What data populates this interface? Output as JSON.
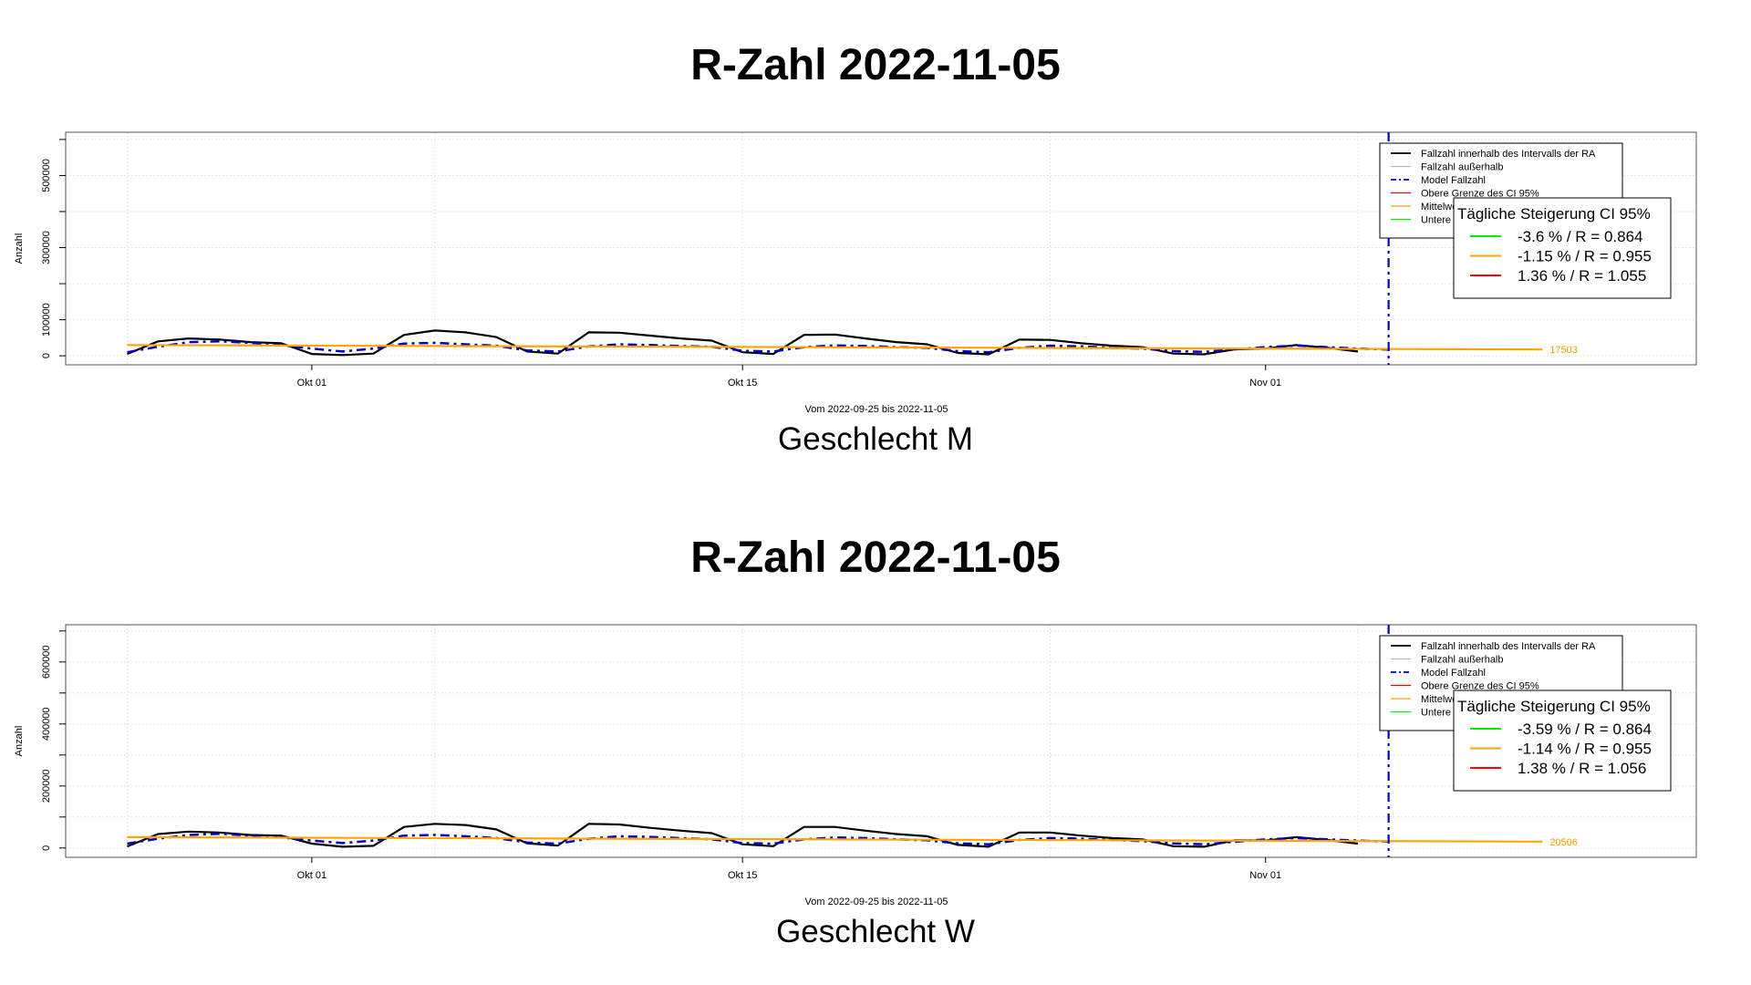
{
  "chart_data": [
    {
      "id": "m",
      "type": "line",
      "title": "R-Zahl 2022-11-05",
      "subtitle": "Geschlecht M",
      "xlabel": "Vom 2022-09-25 bis 2022-11-05",
      "ylabel": "Anzahl",
      "x_range": [
        "2022-09-23",
        "2022-11-15"
      ],
      "ylim": [
        -25000,
        620000
      ],
      "y_ticks": [
        0,
        100000,
        300000,
        500000
      ],
      "y_tick_labels": [
        "0",
        "100000",
        "300000",
        "500000"
      ],
      "x_ticks": [
        "2022-10-01",
        "2022-10-15",
        "2022-11-01"
      ],
      "x_tick_labels": [
        "Okt 01",
        "Okt 15",
        "Nov 01"
      ],
      "grid": true,
      "last_value_label": "17503",
      "legend": {
        "position": "top-right",
        "entries": [
          "Fallzahl innerhalb des Intervalls der RA",
          "Fallzahl außerhalb",
          "Model Fallzahl",
          "Obere Grenze des CI 95%",
          "Mittelwert",
          "Untere Grenze des CI 95%"
        ]
      },
      "ci_box": {
        "title": "Tägliche Steigerung CI  95%",
        "entries": [
          "-3.6 % / R = 0.864",
          "-1.15 % / R = 0.955",
          "1.36 % / R = 1.055"
        ]
      },
      "vline_date": "2022-11-05",
      "series": [
        {
          "name": "Fallzahl innerhalb des Intervalls der RA",
          "x": [
            "2022-09-25",
            "2022-09-26",
            "2022-09-27",
            "2022-09-28",
            "2022-09-29",
            "2022-09-30",
            "2022-10-01",
            "2022-10-02",
            "2022-10-03",
            "2022-10-04",
            "2022-10-05",
            "2022-10-06",
            "2022-10-07",
            "2022-10-08",
            "2022-10-09",
            "2022-10-10",
            "2022-10-11",
            "2022-10-12",
            "2022-10-13",
            "2022-10-14",
            "2022-10-15",
            "2022-10-16",
            "2022-10-17",
            "2022-10-18",
            "2022-10-19",
            "2022-10-20",
            "2022-10-21",
            "2022-10-22",
            "2022-10-23",
            "2022-10-24",
            "2022-10-25",
            "2022-10-26",
            "2022-10-27",
            "2022-10-28",
            "2022-10-29",
            "2022-10-30",
            "2022-10-31",
            "2022-11-01",
            "2022-11-02",
            "2022-11-03",
            "2022-11-04"
          ],
          "y": [
            5000,
            40000,
            48000,
            45000,
            38000,
            35000,
            5000,
            2000,
            6000,
            58000,
            70000,
            65000,
            52000,
            12000,
            6000,
            65000,
            64000,
            56000,
            48000,
            42000,
            10000,
            5000,
            58000,
            59000,
            48000,
            38000,
            32000,
            8000,
            4000,
            45000,
            44000,
            35000,
            28000,
            24000,
            6000,
            4000,
            18000,
            20000,
            30000,
            22000,
            12000
          ]
        },
        {
          "name": "Model Fallzahl",
          "x": [
            "2022-09-25",
            "2022-09-26",
            "2022-09-27",
            "2022-09-28",
            "2022-09-29",
            "2022-09-30",
            "2022-10-01",
            "2022-10-02",
            "2022-10-03",
            "2022-10-04",
            "2022-10-05",
            "2022-10-06",
            "2022-10-07",
            "2022-10-08",
            "2022-10-09",
            "2022-10-10",
            "2022-10-11",
            "2022-10-12",
            "2022-10-13",
            "2022-10-14",
            "2022-10-15",
            "2022-10-16",
            "2022-10-17",
            "2022-10-18",
            "2022-10-19",
            "2022-10-20",
            "2022-10-21",
            "2022-10-22",
            "2022-10-23",
            "2022-10-24",
            "2022-10-25",
            "2022-10-26",
            "2022-10-27",
            "2022-10-28",
            "2022-10-29",
            "2022-10-30",
            "2022-10-31",
            "2022-11-01",
            "2022-11-02",
            "2022-11-03",
            "2022-11-04",
            "2022-11-05"
          ],
          "y": [
            10000,
            25000,
            38000,
            40000,
            36000,
            30000,
            20000,
            12000,
            20000,
            34000,
            36000,
            32000,
            28000,
            15000,
            12000,
            26000,
            32000,
            30000,
            27000,
            25000,
            14000,
            12000,
            24000,
            29000,
            27000,
            24000,
            22000,
            13000,
            10000,
            22000,
            28000,
            26000,
            22000,
            20000,
            13000,
            11000,
            18000,
            24000,
            28000,
            24000,
            20000,
            17503
          ]
        },
        {
          "name": "Mittelwert",
          "x": [
            "2022-09-25",
            "2022-11-10"
          ],
          "y": [
            30000,
            17503
          ]
        }
      ]
    },
    {
      "id": "w",
      "type": "line",
      "title": "R-Zahl 2022-11-05",
      "subtitle": "Geschlecht W",
      "xlabel": "Vom 2022-09-25 bis 2022-11-05",
      "ylabel": "Anzahl",
      "x_range": [
        "2022-09-23",
        "2022-11-15"
      ],
      "ylim": [
        -30000,
        720000
      ],
      "y_ticks": [
        0,
        200000,
        400000,
        600000
      ],
      "y_tick_labels": [
        "0",
        "200000",
        "400000",
        "600000"
      ],
      "x_ticks": [
        "2022-10-01",
        "2022-10-15",
        "2022-11-01"
      ],
      "x_tick_labels": [
        "Okt 01",
        "Okt 15",
        "Nov 01"
      ],
      "grid": true,
      "last_value_label": "20506",
      "legend": {
        "position": "top-right",
        "entries": [
          "Fallzahl innerhalb des Intervalls der RA",
          "Fallzahl außerhalb",
          "Model Fallzahl",
          "Obere Grenze des CI 95%",
          "Mittelwert",
          "Untere Grenze des CI 95%"
        ]
      },
      "ci_box": {
        "title": "Tägliche Steigerung CI  95%",
        "entries": [
          "-3.59 % / R = 0.864",
          "-1.14 % / R = 0.955",
          "1.38 % / R = 1.056"
        ]
      },
      "vline_date": "2022-11-05",
      "series": [
        {
          "name": "Fallzahl innerhalb des Intervalls der RA",
          "x": [
            "2022-09-25",
            "2022-09-26",
            "2022-09-27",
            "2022-09-28",
            "2022-09-29",
            "2022-09-30",
            "2022-10-01",
            "2022-10-02",
            "2022-10-03",
            "2022-10-04",
            "2022-10-05",
            "2022-10-06",
            "2022-10-07",
            "2022-10-08",
            "2022-10-09",
            "2022-10-10",
            "2022-10-11",
            "2022-10-12",
            "2022-10-13",
            "2022-10-14",
            "2022-10-15",
            "2022-10-16",
            "2022-10-17",
            "2022-10-18",
            "2022-10-19",
            "2022-10-20",
            "2022-10-21",
            "2022-10-22",
            "2022-10-23",
            "2022-10-24",
            "2022-10-25",
            "2022-10-26",
            "2022-10-27",
            "2022-10-28",
            "2022-10-29",
            "2022-10-30",
            "2022-10-31",
            "2022-11-01",
            "2022-11-02",
            "2022-11-03",
            "2022-11-04"
          ],
          "y": [
            5000,
            45000,
            53000,
            50000,
            42000,
            40000,
            14000,
            4000,
            7000,
            68000,
            78000,
            74000,
            60000,
            15000,
            8000,
            78000,
            76000,
            65000,
            56000,
            48000,
            12000,
            6000,
            68000,
            68000,
            56000,
            45000,
            38000,
            10000,
            4000,
            50000,
            50000,
            40000,
            32000,
            28000,
            6000,
            4000,
            25000,
            24000,
            35000,
            26000,
            14000
          ]
        },
        {
          "name": "Model Fallzahl",
          "x": [
            "2022-09-25",
            "2022-09-26",
            "2022-09-27",
            "2022-09-28",
            "2022-09-29",
            "2022-09-30",
            "2022-10-01",
            "2022-10-02",
            "2022-10-03",
            "2022-10-04",
            "2022-10-05",
            "2022-10-06",
            "2022-10-07",
            "2022-10-08",
            "2022-10-09",
            "2022-10-10",
            "2022-10-11",
            "2022-10-12",
            "2022-10-13",
            "2022-10-14",
            "2022-10-15",
            "2022-10-16",
            "2022-10-17",
            "2022-10-18",
            "2022-10-19",
            "2022-10-20",
            "2022-10-21",
            "2022-10-22",
            "2022-10-23",
            "2022-10-24",
            "2022-10-25",
            "2022-10-26",
            "2022-10-27",
            "2022-10-28",
            "2022-10-29",
            "2022-10-30",
            "2022-10-31",
            "2022-11-01",
            "2022-11-02",
            "2022-11-03",
            "2022-11-04",
            "2022-11-05"
          ],
          "y": [
            14000,
            30000,
            42000,
            46000,
            40000,
            34000,
            24000,
            16000,
            24000,
            40000,
            42000,
            38000,
            32000,
            18000,
            14000,
            30000,
            38000,
            36000,
            32000,
            28000,
            16000,
            14000,
            28000,
            34000,
            32000,
            28000,
            25000,
            15000,
            12000,
            26000,
            32000,
            30000,
            26000,
            22000,
            15000,
            12000,
            20000,
            28000,
            32000,
            28000,
            24000,
            20506
          ]
        },
        {
          "name": "Mittelwert",
          "x": [
            "2022-09-25",
            "2022-11-10"
          ],
          "y": [
            35000,
            20506
          ]
        }
      ]
    }
  ]
}
